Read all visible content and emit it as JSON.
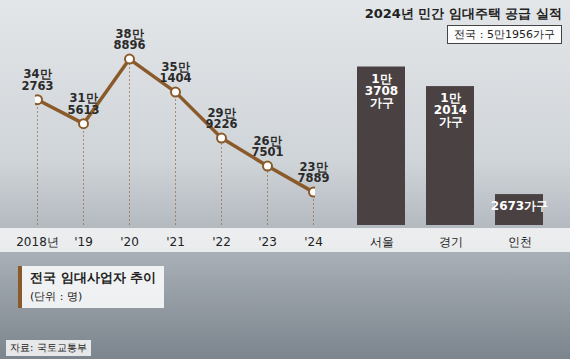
{
  "chart_data": [
    {
      "type": "line",
      "title": "전국 임대사업자 추이",
      "subtitle": "(단위 : 명)",
      "categories": [
        "2018년",
        "'19",
        "'20",
        "'21",
        "'22",
        "'23",
        "'24"
      ],
      "values": [
        342763,
        315613,
        388896,
        351404,
        299226,
        267501,
        237889
      ],
      "value_labels": [
        "34만\n2763",
        "31만\n5613",
        "38만\n8896",
        "35만\n1404",
        "29만\n9226",
        "26만\n7501",
        "23만\n7889"
      ],
      "color": "#8b5a2b",
      "marker": "circle",
      "line_style": "solid",
      "data_labels": true,
      "tick_labels": "x",
      "ylim": [
        200000,
        410000
      ]
    },
    {
      "type": "bar",
      "title": "2024년 민간 임대주택 공급 실적",
      "subtitle": "전국 : 5만1956가구",
      "categories": [
        "서울",
        "경기",
        "인천"
      ],
      "values": [
        13708,
        12014,
        2673
      ],
      "value_labels": [
        "1만\n3708\n가구",
        "1만\n2014\n가구",
        "2673가구"
      ],
      "color": "#4a4242",
      "data_labels": true,
      "tick_labels": "x",
      "ylim": [
        0,
        16000
      ]
    }
  ],
  "source": "자료: 국토교통부"
}
